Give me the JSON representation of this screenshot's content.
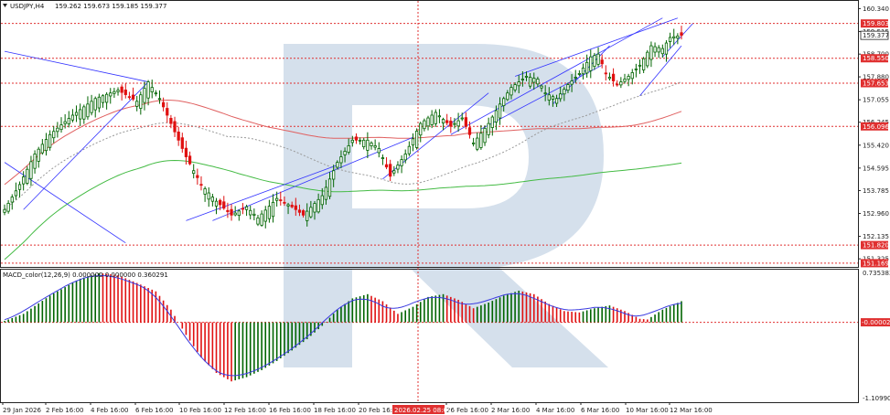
{
  "window": {
    "symbol_label": "USDJPY,H4",
    "ohlc_label": "159.262 159.673 159.185 159.377",
    "macd_label": "MACD_color(12,26,9) 0.000000 0.000000 0.360291",
    "menu_icon": "triangle-down-icon",
    "watermark": "R"
  },
  "colors": {
    "bull": "#006400",
    "bear": "#e01010",
    "level_line": "#e03030",
    "ma_red": "#e06060",
    "ma_green": "#44bb44",
    "ma_dotted": "#999999",
    "trend_blue": "#3333ff",
    "signal_blue": "#3a3ae0",
    "watermark": "#c7d5e6",
    "price_tag_bg": "#ffffff",
    "level_tag_bg": "#e03030"
  },
  "chart_data": [
    {
      "type": "candlestick",
      "title": "USDJPY,H4",
      "y_ticks": [
        "160.340",
        "159.515",
        "158.700",
        "157.880",
        "157.055",
        "156.245",
        "155.420",
        "154.595",
        "153.785",
        "152.960",
        "152.135",
        "151.325"
      ],
      "ylim": [
        151.1,
        160.55
      ],
      "x_ticks": [
        "29 Jan 2026",
        "2 Feb 16:00",
        "4 Feb 16:00",
        "6 Feb 16:00",
        "10 Feb 16:00",
        "12 Feb 16:00",
        "16 Feb 16:00",
        "18 Feb 16:00",
        "20 Feb 16:00",
        "26 Feb 16:00",
        "2 Mar 16:00",
        "4 Mar 16:00",
        "6 Mar 16:00",
        "10 Mar 16:00",
        "12 Mar 16:00"
      ],
      "x_cursor_label": "2026.02.25 08:00",
      "bar_count": 180,
      "current_price": 159.377,
      "horizontal_levels": [
        {
          "value": 159.803,
          "label": "159.803"
        },
        {
          "value": 158.55,
          "label": "158.550"
        },
        {
          "value": 157.653,
          "label": "157.653"
        },
        {
          "value": 156.096,
          "label": "156.096"
        },
        {
          "value": 151.82,
          "label": "151.820"
        },
        {
          "value": 151.169,
          "label": "151.169"
        }
      ],
      "anchors": [
        [
          0,
          153.1
        ],
        [
          4,
          154.0
        ],
        [
          8,
          155.1
        ],
        [
          12,
          155.8
        ],
        [
          18,
          156.5
        ],
        [
          24,
          157.1
        ],
        [
          30,
          157.4
        ],
        [
          35,
          157.0
        ],
        [
          38,
          157.7
        ],
        [
          41,
          157.1
        ],
        [
          44,
          156.2
        ],
        [
          48,
          155.0
        ],
        [
          52,
          154.0
        ],
        [
          56,
          153.4
        ],
        [
          60,
          152.9
        ],
        [
          64,
          153.2
        ],
        [
          67,
          152.8
        ],
        [
          72,
          153.5
        ],
        [
          76,
          153.2
        ],
        [
          79,
          152.9
        ],
        [
          84,
          153.6
        ],
        [
          88,
          154.8
        ],
        [
          92,
          155.6
        ],
        [
          96,
          155.6
        ],
        [
          99,
          155.3
        ],
        [
          102,
          154.3
        ],
        [
          106,
          155.1
        ],
        [
          110,
          156.2
        ],
        [
          114,
          156.6
        ],
        [
          118,
          156.1
        ],
        [
          121,
          156.4
        ],
        [
          124,
          155.5
        ],
        [
          128,
          156.2
        ],
        [
          131,
          156.9
        ],
        [
          134,
          157.5
        ],
        [
          138,
          157.9
        ],
        [
          141,
          157.8
        ],
        [
          143,
          157.3
        ],
        [
          146,
          157.1
        ],
        [
          149,
          157.6
        ],
        [
          152,
          158.0
        ],
        [
          155,
          158.6
        ],
        [
          157,
          158.7
        ],
        [
          159,
          158.0
        ],
        [
          162,
          157.6
        ],
        [
          165,
          157.9
        ],
        [
          168,
          158.3
        ],
        [
          171,
          159.0
        ],
        [
          174,
          158.9
        ],
        [
          176,
          159.3
        ],
        [
          179,
          159.377
        ]
      ]
    },
    {
      "type": "bar",
      "title": "MACD_color(12,26,9)",
      "series": [
        {
          "name": "0.000000",
          "values": "histogram (green = rising, red = falling)"
        },
        {
          "name": "0.360291",
          "values": "signal line"
        }
      ],
      "y_ticks": [
        "0.735383",
        "-0.000026",
        "-1.109903"
      ],
      "ylim": [
        -1.109903,
        0.735383
      ],
      "anchors": [
        [
          0,
          0.02
        ],
        [
          5,
          0.12
        ],
        [
          12,
          0.38
        ],
        [
          20,
          0.62
        ],
        [
          25,
          0.7
        ],
        [
          30,
          0.67
        ],
        [
          35,
          0.56
        ],
        [
          40,
          0.44
        ],
        [
          44,
          0.18
        ],
        [
          48,
          -0.18
        ],
        [
          52,
          -0.5
        ],
        [
          56,
          -0.72
        ],
        [
          60,
          -0.84
        ],
        [
          64,
          -0.78
        ],
        [
          68,
          -0.68
        ],
        [
          72,
          -0.55
        ],
        [
          76,
          -0.4
        ],
        [
          80,
          -0.24
        ],
        [
          84,
          -0.05
        ],
        [
          88,
          0.18
        ],
        [
          92,
          0.34
        ],
        [
          96,
          0.4
        ],
        [
          100,
          0.3
        ],
        [
          104,
          0.12
        ],
        [
          108,
          0.22
        ],
        [
          112,
          0.36
        ],
        [
          116,
          0.4
        ],
        [
          120,
          0.32
        ],
        [
          124,
          0.2
        ],
        [
          128,
          0.28
        ],
        [
          132,
          0.38
        ],
        [
          136,
          0.45
        ],
        [
          140,
          0.4
        ],
        [
          144,
          0.26
        ],
        [
          148,
          0.16
        ],
        [
          152,
          0.14
        ],
        [
          156,
          0.2
        ],
        [
          160,
          0.24
        ],
        [
          164,
          0.16
        ],
        [
          168,
          0.05
        ],
        [
          170,
          0.04
        ],
        [
          174,
          0.18
        ],
        [
          179,
          0.3
        ]
      ]
    }
  ]
}
